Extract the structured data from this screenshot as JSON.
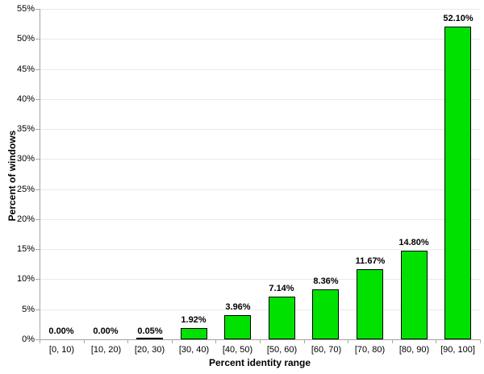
{
  "chart_data": {
    "type": "bar",
    "title": "",
    "xlabel": "Percent identity range",
    "ylabel": "Percent of windows",
    "categories": [
      "[0, 10)",
      "[10, 20)",
      "[20, 30)",
      "[30, 40)",
      "[40, 50)",
      "[50, 60)",
      "[60, 70)",
      "[70, 80)",
      "[80, 90)",
      "[90, 100]"
    ],
    "values": [
      0.0,
      0.0,
      0.05,
      1.92,
      3.96,
      7.14,
      8.36,
      11.67,
      14.8,
      52.1
    ],
    "value_labels": [
      "0.00%",
      "0.00%",
      "0.05%",
      "1.92%",
      "3.96%",
      "7.14%",
      "8.36%",
      "11.67%",
      "14.80%",
      "52.10%"
    ],
    "ylim": [
      0,
      55
    ],
    "ytick_step": 5,
    "ytick_labels": [
      "0%",
      "5%",
      "10%",
      "15%",
      "20%",
      "25%",
      "30%",
      "35%",
      "40%",
      "45%",
      "50%",
      "55%"
    ],
    "grid": true,
    "legend": null,
    "colors": {
      "bar_fill": "#00e100",
      "bar_border": "#000000",
      "axis": "#a3a3a3",
      "gridline": "#e9e9e9",
      "tick": "#a9a9a9",
      "text": "#000000"
    }
  }
}
